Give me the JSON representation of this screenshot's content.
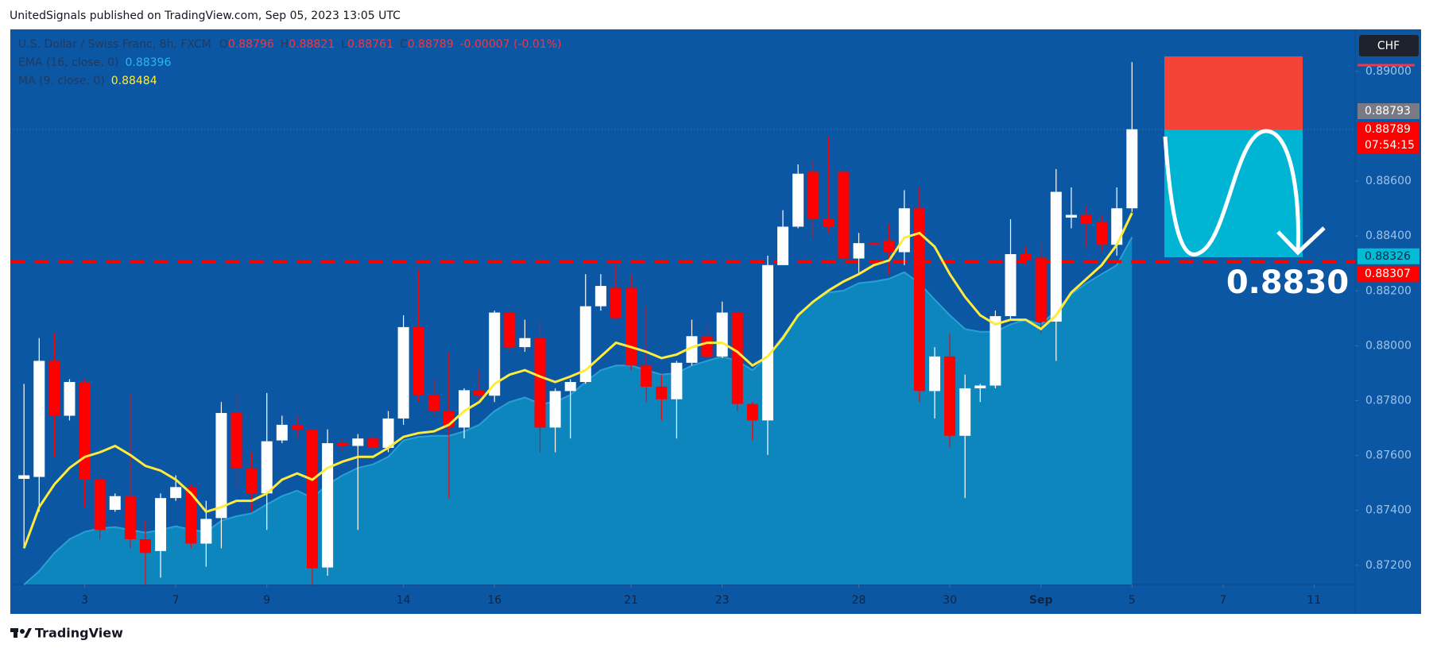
{
  "header": {
    "note": "UnitedSignals published on TradingView.com, Sep 05, 2023 13:05 UTC"
  },
  "footer": {
    "brand": "TradingView"
  },
  "chart_data": {
    "type": "candlestick",
    "title": "U.S. Dollar / Swiss Franc, 8h, FXCM",
    "ohlc_legend": [
      {
        "label": "O",
        "value": 0.88796
      },
      {
        "label": "H",
        "value": 0.88821
      },
      {
        "label": "L",
        "value": 0.88761
      },
      {
        "label": "C",
        "value": 0.88789
      }
    ],
    "change": "-0.00007 (-0.01%)",
    "currency": "CHF",
    "up_color": "#ffffff",
    "down_color": "#ff0000",
    "open": [
      0.87515,
      0.87522,
      0.87945,
      0.87745,
      0.87868,
      0.87512,
      0.87402,
      0.87452,
      0.87295,
      0.87252,
      0.87445,
      0.87485,
      0.87279,
      0.87372,
      0.87755,
      0.87552,
      0.87462,
      0.87655,
      0.87712,
      0.87695,
      0.87192,
      0.87645,
      0.87635,
      0.87662,
      0.87628,
      0.87735,
      0.88068,
      0.87821,
      0.87762,
      0.87702,
      0.87838,
      0.87818,
      0.88121,
      0.87995,
      0.88028,
      0.87702,
      0.87835,
      0.87868,
      0.88144,
      0.88211,
      0.88211,
      0.87928,
      0.87851,
      0.87805,
      0.87938,
      0.88035,
      0.87961,
      0.88121,
      0.87788,
      0.87728,
      0.88294,
      0.88434,
      0.88634,
      0.88461,
      0.88634,
      0.88318,
      0.88374,
      0.88384,
      0.88341,
      0.88501,
      0.87835,
      0.87961,
      0.87672,
      0.87845,
      0.87855,
      0.88108,
      0.88334,
      0.88321,
      0.88088,
      0.88467,
      0.88477,
      0.88451,
      0.88368,
      0.88501
    ],
    "high": [
      0.87861,
      0.88028,
      0.88045,
      0.87878,
      0.87878,
      0.87528,
      0.87462,
      0.87828,
      0.87362,
      0.87462,
      0.87528,
      0.87495,
      0.87435,
      0.87795,
      0.87828,
      0.87612,
      0.87828,
      0.87745,
      0.87745,
      0.87695,
      0.87695,
      0.87662,
      0.87678,
      0.87675,
      0.87762,
      0.88111,
      0.88278,
      0.87878,
      0.87978,
      0.87845,
      0.87911,
      0.88128,
      0.88128,
      0.88095,
      0.88095,
      0.87845,
      0.87878,
      0.88261,
      0.88261,
      0.88294,
      0.88261,
      0.88144,
      0.87895,
      0.87945,
      0.88095,
      0.88078,
      0.88161,
      0.88128,
      0.87795,
      0.88328,
      0.88494,
      0.88661,
      0.88677,
      0.88761,
      0.88644,
      0.88411,
      0.88388,
      0.88444,
      0.88567,
      0.88577,
      0.87995,
      0.88045,
      0.87895,
      0.87861,
      0.88128,
      0.88461,
      0.88361,
      0.88378,
      0.88644,
      0.88577,
      0.88511,
      0.88477,
      0.88577,
      0.89034
    ],
    "low": [
      0.87262,
      0.87395,
      0.87595,
      0.87728,
      0.87412,
      0.87295,
      0.87395,
      0.87262,
      0.87129,
      0.87155,
      0.87435,
      0.87262,
      0.87195,
      0.87262,
      0.87478,
      0.87395,
      0.87329,
      0.87645,
      0.87662,
      0.87129,
      0.87162,
      0.87612,
      0.87329,
      0.87612,
      0.87612,
      0.87712,
      0.87795,
      0.87745,
      0.87445,
      0.87662,
      0.87795,
      0.87795,
      0.87978,
      0.87978,
      0.87612,
      0.87612,
      0.87662,
      0.87861,
      0.88128,
      0.88095,
      0.87911,
      0.87795,
      0.87728,
      0.87662,
      0.87928,
      0.87951,
      0.87955,
      0.87762,
      0.87655,
      0.87602,
      0.88294,
      0.88428,
      0.88394,
      0.88411,
      0.88294,
      0.88261,
      0.88361,
      0.88261,
      0.88294,
      0.87795,
      0.87735,
      0.87628,
      0.87445,
      0.87795,
      0.87845,
      0.88095,
      0.88294,
      0.88045,
      0.87945,
      0.88428,
      0.88361,
      0.88344,
      0.88328,
      0.88487
    ],
    "close": [
      0.87528,
      0.87945,
      0.87745,
      0.87868,
      0.87512,
      0.87329,
      0.87452,
      0.87295,
      0.87245,
      0.87445,
      0.87485,
      0.87279,
      0.87369,
      0.87755,
      0.87555,
      0.87462,
      0.87652,
      0.87712,
      0.87695,
      0.87189,
      0.87645,
      0.87635,
      0.87662,
      0.87628,
      0.87735,
      0.88068,
      0.87821,
      0.87762,
      0.87702,
      0.87838,
      0.87818,
      0.88121,
      0.87995,
      0.88028,
      0.87702,
      0.87835,
      0.87868,
      0.88144,
      0.88218,
      0.88101,
      0.87928,
      0.87851,
      0.87805,
      0.87938,
      0.88035,
      0.87961,
      0.88121,
      0.87788,
      0.87728,
      0.88294,
      0.88434,
      0.88627,
      0.88461,
      0.88434,
      0.88318,
      0.88374,
      0.88368,
      0.88341,
      0.88501,
      0.87835,
      0.87961,
      0.87672,
      0.87845,
      0.87855,
      0.88108,
      0.88334,
      0.88311,
      0.88088,
      0.88561,
      0.88477,
      0.88444,
      0.88368,
      0.88501,
      0.88789
    ],
    "series": [
      {
        "name": "EMA (16, close, 0)",
        "color": "#29b6f6",
        "fill": "#0d86be",
        "values": [
          0.87129,
          0.87179,
          0.87245,
          0.87295,
          0.87322,
          0.87335,
          0.87339,
          0.87329,
          0.87319,
          0.87329,
          0.87342,
          0.87329,
          0.87322,
          0.87362,
          0.87379,
          0.87389,
          0.87422,
          0.87452,
          0.87472,
          0.87445,
          0.87495,
          0.87528,
          0.87555,
          0.87568,
          0.87595,
          0.87655,
          0.87668,
          0.87672,
          0.87672,
          0.87688,
          0.87712,
          0.87762,
          0.87795,
          0.87812,
          0.87788,
          0.87795,
          0.87821,
          0.87868,
          0.87911,
          0.87928,
          0.87928,
          0.87911,
          0.87895,
          0.87901,
          0.87928,
          0.87945,
          0.87961,
          0.87945,
          0.87911,
          0.87961,
          0.88035,
          0.88111,
          0.88161,
          0.88194,
          0.88201,
          0.88228,
          0.88234,
          0.88244,
          0.88268,
          0.88228,
          0.88168,
          0.88111,
          0.88061,
          0.88051,
          0.88051,
          0.88078,
          0.88095,
          0.88078,
          0.88128,
          0.88188,
          0.88228,
          0.88261,
          0.88294,
          0.88396
        ]
      },
      {
        "name": "MA (9, close, 0)",
        "color": "#ffeb3b",
        "values": [
          0.87262,
          0.87412,
          0.87495,
          0.87555,
          0.87595,
          0.87612,
          0.87635,
          0.87602,
          0.87562,
          0.87545,
          0.87512,
          0.87462,
          0.87395,
          0.87412,
          0.87435,
          0.87435,
          0.87462,
          0.87512,
          0.87535,
          0.87512,
          0.87555,
          0.87578,
          0.87595,
          0.87595,
          0.87628,
          0.87668,
          0.87682,
          0.87688,
          0.87712,
          0.87762,
          0.87795,
          0.87861,
          0.87895,
          0.87911,
          0.87888,
          0.87868,
          0.87888,
          0.87911,
          0.87961,
          0.88011,
          0.87995,
          0.87978,
          0.87955,
          0.87968,
          0.87995,
          0.88011,
          0.88011,
          0.87978,
          0.87928,
          0.87961,
          0.88028,
          0.88111,
          0.88161,
          0.88201,
          0.88234,
          0.88261,
          0.88294,
          0.88311,
          0.88394,
          0.88411,
          0.88361,
          0.88261,
          0.88178,
          0.88111,
          0.88078,
          0.88095,
          0.88095,
          0.88061,
          0.88111,
          0.88194,
          0.88244,
          0.88294,
          0.88368,
          0.88484
        ]
      }
    ],
    "xlim": [
      -0.9,
      87.7
    ],
    "xticks": [
      {
        "value": 4,
        "label": "3"
      },
      {
        "value": 10,
        "label": "7"
      },
      {
        "value": 16,
        "label": "9"
      },
      {
        "value": 25,
        "label": "14"
      },
      {
        "value": 31,
        "label": "16"
      },
      {
        "value": 40,
        "label": "21"
      },
      {
        "value": 46,
        "label": "23"
      },
      {
        "value": 55,
        "label": "28"
      },
      {
        "value": 61,
        "label": "30"
      },
      {
        "value": 67,
        "label": "Sep"
      },
      {
        "value": 73,
        "label": "5"
      },
      {
        "value": 79,
        "label": "7"
      },
      {
        "value": 85,
        "label": "11"
      }
    ],
    "ylim": [
      0.8713,
      0.89153
    ],
    "yticks": [
      {
        "value": 0.89,
        "label": "0.89000"
      },
      {
        "value": 0.886,
        "label": "0.88600"
      },
      {
        "value": 0.884,
        "label": "0.88400"
      },
      {
        "value": 0.882,
        "label": "0.88200"
      },
      {
        "value": 0.88,
        "label": "0.88000"
      },
      {
        "value": 0.878,
        "label": "0.87800"
      },
      {
        "value": 0.876,
        "label": "0.87600"
      },
      {
        "value": 0.874,
        "label": "0.87400"
      },
      {
        "value": 0.872,
        "label": "0.87200"
      }
    ],
    "grid": false,
    "price_tags": [
      {
        "value": 0.88793,
        "color": "#787b86"
      },
      {
        "value": 0.88326,
        "color": "#00bcd4"
      }
    ],
    "countdown": "07:54:15",
    "hline": {
      "value": 0.88307,
      "color": "#ff0000"
    },
    "annotation": "0.8830"
  }
}
